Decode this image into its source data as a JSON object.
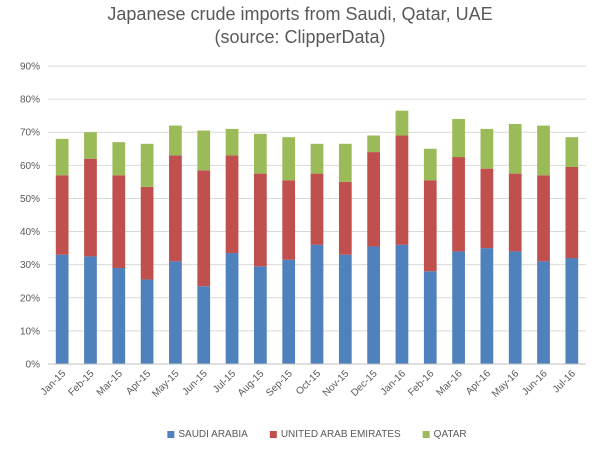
{
  "chart_data": {
    "type": "bar",
    "stacked": true,
    "title": "Japanese crude imports from Saudi, Qatar, UAE",
    "subtitle": "(source: ClipperData)",
    "xlabel": "",
    "ylabel": "",
    "ylim": [
      0,
      90
    ],
    "yticks": [
      "0%",
      "10%",
      "20%",
      "30%",
      "40%",
      "50%",
      "60%",
      "70%",
      "80%",
      "90%"
    ],
    "grid": true,
    "legend_position": "bottom",
    "categories": [
      "Jan-15",
      "Feb-15",
      "Mar-15",
      "Apr-15",
      "May-15",
      "Jun-15",
      "Jul-15",
      "Aug-15",
      "Sep-15",
      "Oct-15",
      "Nov-15",
      "Dec-15",
      "Jan-16",
      "Feb-16",
      "Mar-16",
      "Apr-16",
      "May-16",
      "Jun-16",
      "Jul-16"
    ],
    "series": [
      {
        "name": "SAUDI ARABIA",
        "color": "#4f81bd",
        "values": [
          33,
          32.5,
          29,
          25.5,
          31,
          23.5,
          33.5,
          29.5,
          31.5,
          36,
          33,
          35.5,
          36,
          28,
          34,
          35,
          34,
          31,
          32
        ]
      },
      {
        "name": "UNITED ARAB EMIRATES",
        "color": "#c0504d",
        "values": [
          24,
          29.5,
          28,
          28,
          32,
          35,
          29.5,
          28,
          24,
          21.5,
          22,
          28.5,
          33,
          27.5,
          28.5,
          24,
          23.5,
          26,
          27.5
        ]
      },
      {
        "name": "QATAR",
        "color": "#9bbb59",
        "values": [
          11,
          8,
          10,
          13,
          9,
          12,
          8,
          12,
          13,
          9,
          11.5,
          5,
          7.5,
          9.5,
          11.5,
          12,
          15,
          15,
          9
        ]
      }
    ]
  }
}
